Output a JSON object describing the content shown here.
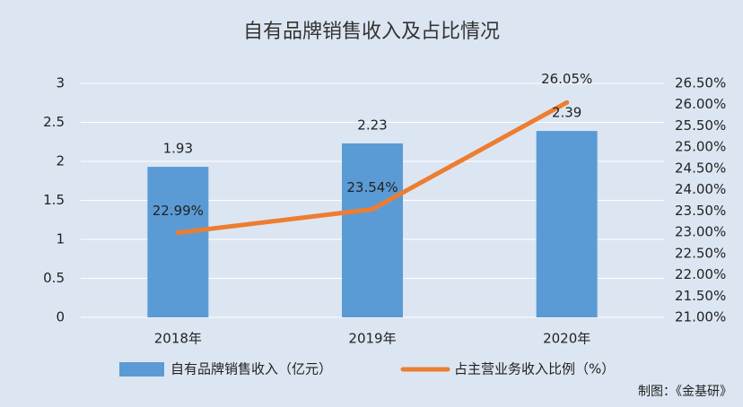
{
  "chart_data": {
    "type": "bar+line",
    "title": "自有品牌销售收入及占比情况",
    "categories": [
      "2018年",
      "2019年",
      "2020年"
    ],
    "series": [
      {
        "name": "自有品牌销售收入（亿元）",
        "type": "bar",
        "axis": "left",
        "values": [
          1.93,
          2.23,
          2.39
        ],
        "labels": [
          "1.93",
          "2.23",
          "2.39"
        ],
        "color": "#5b9bd5"
      },
      {
        "name": "占主营业务收入比例（%）",
        "type": "line",
        "axis": "right",
        "values": [
          22.99,
          23.54,
          26.05
        ],
        "labels": [
          "22.99%",
          "23.54%",
          "26.05%"
        ],
        "color": "#ed7d31"
      }
    ],
    "y_left": {
      "range": [
        0,
        3
      ],
      "ticks": [
        0,
        0.5,
        1,
        1.5,
        2,
        2.5,
        3
      ],
      "tick_labels": [
        "0",
        "0.5",
        "1",
        "1.5",
        "2",
        "2.5",
        "3"
      ]
    },
    "y_right": {
      "range": [
        21.0,
        26.5
      ],
      "ticks": [
        21.0,
        21.5,
        22.0,
        22.5,
        23.0,
        23.5,
        24.0,
        24.5,
        25.0,
        25.5,
        26.0,
        26.5
      ],
      "tick_labels": [
        "21.00%",
        "21.50%",
        "22.00%",
        "22.50%",
        "23.00%",
        "23.50%",
        "24.00%",
        "24.50%",
        "25.00%",
        "25.50%",
        "26.00%",
        "26.50%"
      ]
    },
    "grid": true,
    "legend_position": "bottom",
    "background_color": "#dce6f2",
    "grid_color": "#ffffff"
  },
  "credit": "制图：《金基研》"
}
